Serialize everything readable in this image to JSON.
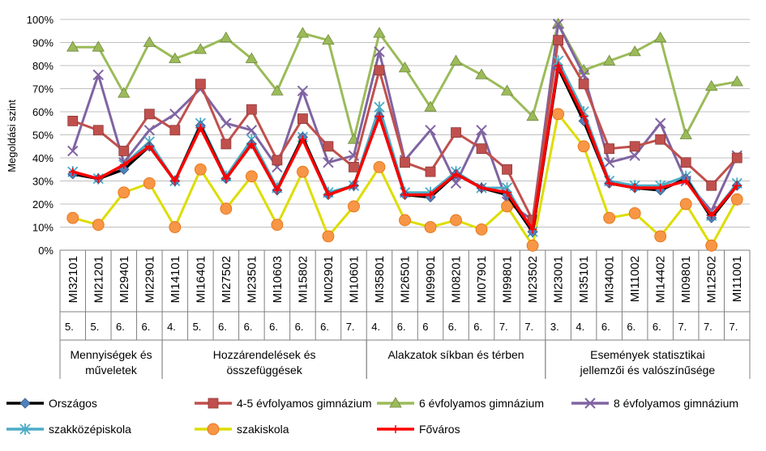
{
  "chart_data": {
    "type": "line",
    "ylabel": "Megoldási szint",
    "ylim": [
      0,
      100
    ],
    "yticks": [
      "0%",
      "10%",
      "20%",
      "30%",
      "40%",
      "50%",
      "60%",
      "70%",
      "80%",
      "90%",
      "100%"
    ],
    "grid": "horizontal",
    "legend": "bottom",
    "categories": [
      "MI32101",
      "MI21201",
      "MI29401",
      "MI22901",
      "MI14101",
      "MI16401",
      "MI27502",
      "MI23501",
      "MI10603",
      "MI15802",
      "MI02901",
      "MI10601",
      "MI35801",
      "MI26501",
      "MI99901",
      "MI08201",
      "MI07901",
      "MI99801",
      "MI23502",
      "MI23001",
      "MI35101",
      "MI34001",
      "MI11002",
      "MI14402",
      "MI09801",
      "MI12502",
      "MI11001"
    ],
    "grades": [
      "5.",
      "5.",
      "6.",
      "6.",
      "4.",
      "5.",
      "6.",
      "6.",
      "6.",
      "6.",
      "6.",
      "7.",
      "4.",
      "6.",
      "6",
      "6.",
      "6.",
      "7.",
      "7.",
      "3.",
      "4.",
      "6.",
      "6.",
      "6.",
      "7.",
      "7.",
      "7."
    ],
    "groups": [
      {
        "label": "Mennyiségek és műveletek",
        "start": 0,
        "end": 3
      },
      {
        "label": "Hozzárendelések és összefüggések",
        "start": 4,
        "end": 11
      },
      {
        "label": "Alakzatok síkban és térben",
        "start": 12,
        "end": 18
      },
      {
        "label": "Események statisztikai jellemzői és valószínűsége",
        "start": 19,
        "end": 26
      }
    ],
    "series": [
      {
        "name": "Országos",
        "color": "#000000",
        "marker": "diamond",
        "markerColor": "#4f81bd",
        "values": [
          33,
          31,
          35,
          45,
          30,
          54,
          31,
          46,
          26,
          49,
          24,
          28,
          58,
          24,
          23,
          33,
          27,
          24,
          8,
          79,
          56,
          29,
          27,
          26,
          31,
          14,
          28
        ]
      },
      {
        "name": "4-5 évfolyamos gimnázium",
        "color": "#c0504d",
        "marker": "square",
        "markerColor": "#c0504d",
        "values": [
          56,
          52,
          43,
          59,
          52,
          72,
          46,
          61,
          39,
          57,
          45,
          36,
          78,
          38,
          34,
          51,
          44,
          35,
          13,
          91,
          72,
          44,
          45,
          48,
          38,
          28,
          40
        ]
      },
      {
        "name": "6 évfolyamos gimnázium",
        "color": "#9bbb59",
        "marker": "triangle",
        "markerColor": "#9bbb59",
        "values": [
          88,
          88,
          68,
          90,
          83,
          87,
          92,
          83,
          69,
          94,
          91,
          48,
          94,
          79,
          62,
          82,
          76,
          69,
          58,
          98,
          78,
          82,
          86,
          92,
          50,
          71,
          73
        ]
      },
      {
        "name": "8 évfolyamos gimnázium",
        "color": "#8064a2",
        "marker": "x",
        "markerColor": "#8064a2",
        "values": [
          43,
          76,
          38,
          52,
          59,
          70,
          55,
          52,
          36,
          69,
          38,
          41,
          86,
          39,
          52,
          29,
          52,
          21,
          13,
          98,
          76,
          38,
          41,
          55,
          30,
          17,
          41
        ]
      },
      {
        "name": "szakközépiskola",
        "color": "#4bacc6",
        "marker": "star",
        "markerColor": "#4bacc6",
        "values": [
          34,
          31,
          37,
          47,
          30,
          55,
          32,
          48,
          27,
          49,
          25,
          28,
          62,
          25,
          25,
          34,
          27,
          27,
          8,
          82,
          60,
          30,
          28,
          28,
          32,
          15,
          29
        ]
      },
      {
        "name": "szakiskola",
        "color": "#dddd00",
        "marker": "circle",
        "markerColor": "#f79646",
        "values": [
          14,
          11,
          25,
          29,
          10,
          35,
          18,
          32,
          11,
          34,
          6,
          19,
          36,
          13,
          10,
          13,
          9,
          19,
          2,
          59,
          45,
          14,
          16,
          6,
          20,
          2,
          22
        ]
      },
      {
        "name": "Főváros",
        "color": "#ff0000",
        "marker": "plus",
        "markerColor": "#ff0000",
        "values": [
          34,
          31,
          37,
          45,
          30,
          53,
          31,
          46,
          26,
          48,
          24,
          28,
          58,
          24,
          24,
          33,
          27,
          25,
          9,
          80,
          58,
          29,
          27,
          27,
          30,
          15,
          28
        ]
      }
    ]
  }
}
